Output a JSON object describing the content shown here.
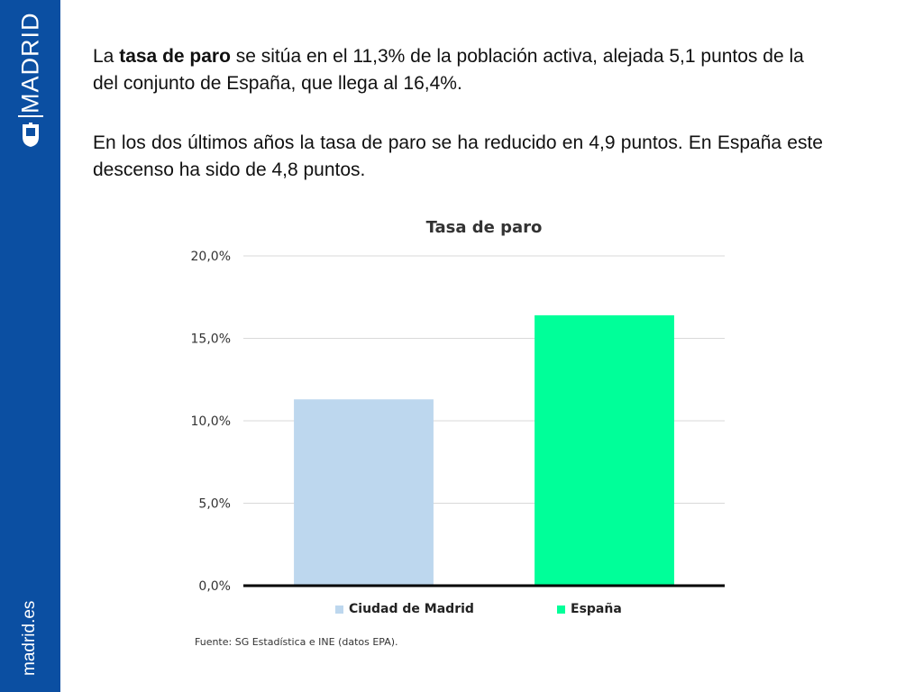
{
  "sidebar": {
    "brand": "MADRID",
    "site": "madrid.es",
    "color": "#0b4fa2"
  },
  "paragraph1": {
    "before": "La ",
    "bold": "tasa de paro",
    "after": " se sitúa en el 11,3% de la población activa, alejada 5,1 puntos de la del conjunto de España, que llega al 16,4%."
  },
  "paragraph2": "En los dos últimos años la tasa de paro se ha reducido en 4,9 puntos. En España este descenso ha sido de 4,8 puntos.",
  "chart_data": {
    "type": "bar",
    "title": "Tasa de paro",
    "categories": [
      "Ciudad de Madrid",
      "España"
    ],
    "values": [
      11.3,
      16.4
    ],
    "colors": [
      "#bdd7ee",
      "#00ff99"
    ],
    "ylim": [
      0,
      20
    ],
    "yticks": [
      "0,0%",
      "5,0%",
      "10,0%",
      "15,0%",
      "20,0%"
    ],
    "grid": true,
    "legend_position": "bottom",
    "legend": [
      "Ciudad de Madrid",
      "España"
    ],
    "source": "Fuente: SG Estadística e INE (datos EPA)."
  }
}
